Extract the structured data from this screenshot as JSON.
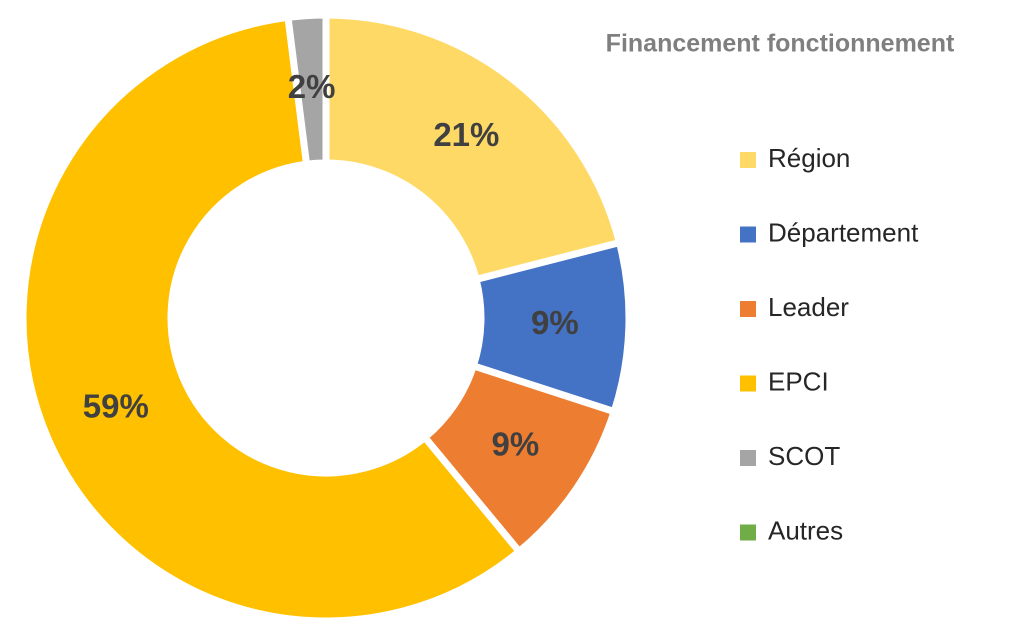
{
  "chart_data": {
    "type": "donut",
    "title": "Financement fonctionnement",
    "categories": [
      "Région",
      "Département",
      "Leader",
      "EPCI",
      "SCOT",
      "Autres"
    ],
    "values": [
      21,
      9,
      9,
      59,
      2,
      0
    ],
    "value_labels": [
      "21%",
      "9%",
      "9%",
      "59%",
      "2%",
      null
    ],
    "colors": [
      "#ffd966",
      "#4472c4",
      "#ed7d31",
      "#ffc000",
      "#a5a5a5",
      "#70ad47"
    ],
    "legend": "right"
  }
}
